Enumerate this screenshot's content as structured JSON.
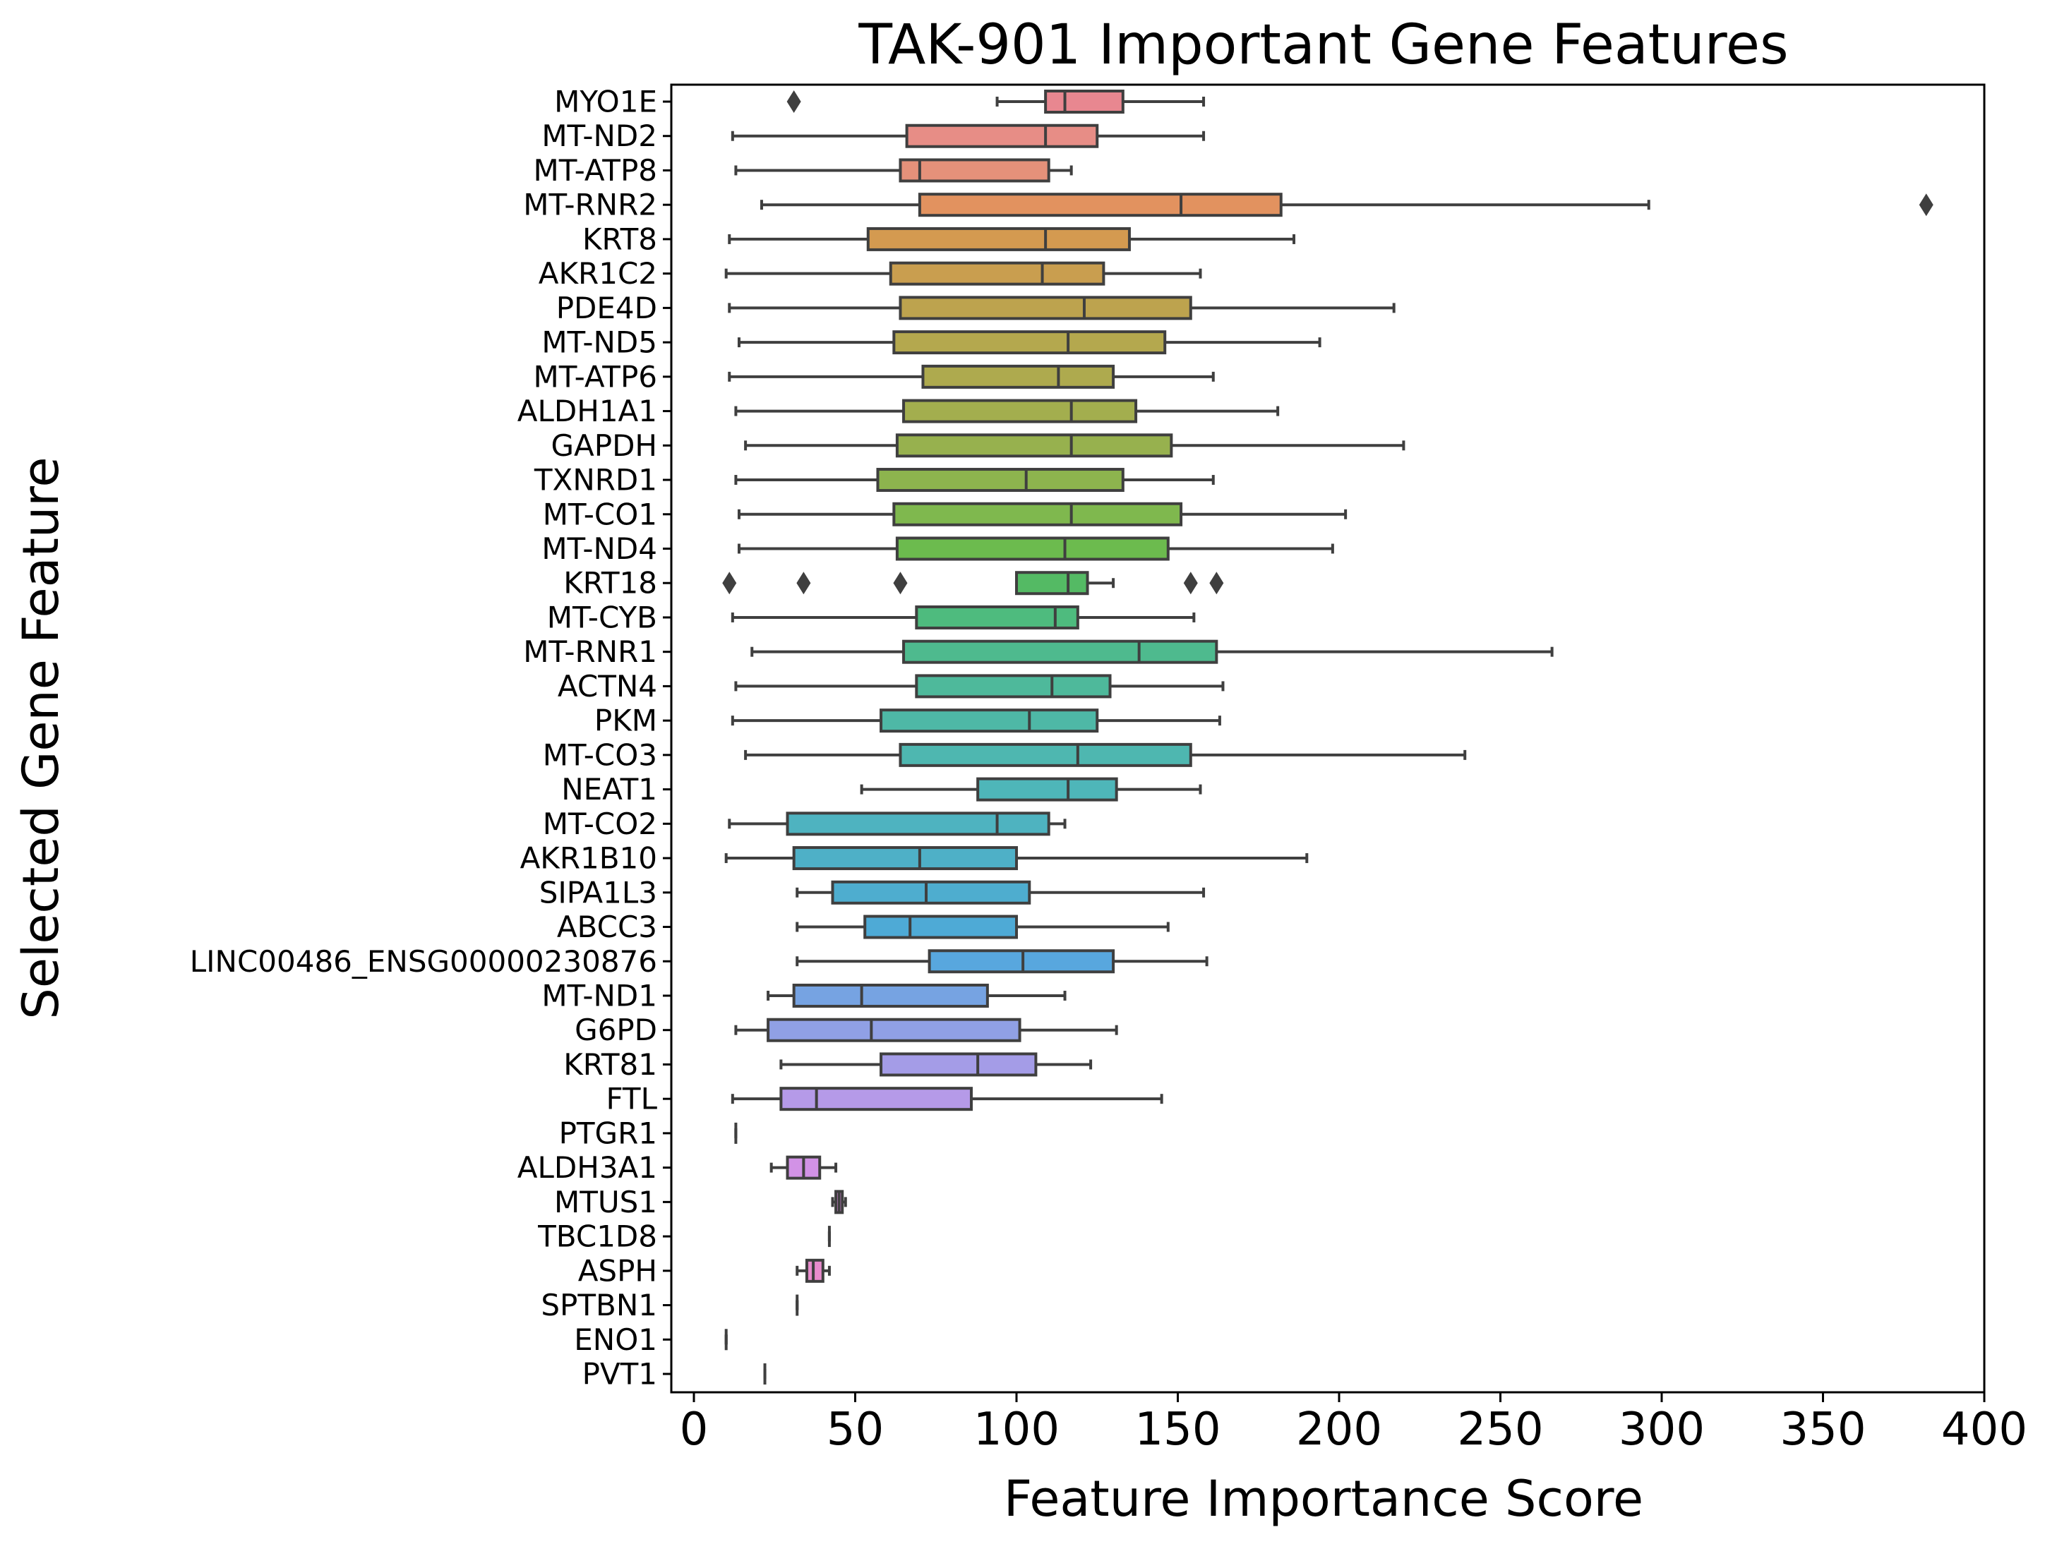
{
  "chart_data": {
    "type": "boxplot",
    "orientation": "horizontal",
    "title": "TAK-901 Important Gene Features",
    "xlabel": "Feature Importance Score",
    "ylabel": "Selected Gene Feature",
    "xlim": [
      -7,
      400
    ],
    "xticks": [
      0,
      50,
      100,
      150,
      200,
      250,
      300,
      350,
      400
    ],
    "grid": false,
    "legend": "none",
    "categories": [
      "MYO1E",
      "MT-ND2",
      "MT-ATP8",
      "MT-RNR2",
      "KRT8",
      "AKR1C2",
      "PDE4D",
      "MT-ND5",
      "MT-ATP6",
      "ALDH1A1",
      "GAPDH",
      "TXNRD1",
      "MT-CO1",
      "MT-ND4",
      "KRT18",
      "MT-CYB",
      "MT-RNR1",
      "ACTN4",
      "PKM",
      "MT-CO3",
      "NEAT1",
      "MT-CO2",
      "AKR1B10",
      "SIPA1L3",
      "ABCC3",
      "LINC00486_ENSG00000230876",
      "MT-ND1",
      "G6PD",
      "KRT81",
      "FTL",
      "PTGR1",
      "ALDH3A1",
      "MTUS1",
      "TBC1D8",
      "ASPH",
      "SPTBN1",
      "ENO1",
      "PVT1"
    ],
    "colors": [
      "#e88790",
      "#e78d86",
      "#e5917a",
      "#e2925f",
      "#d49a50",
      "#c99e4f",
      "#bda34e",
      "#b4a84e",
      "#aeaa4e",
      "#a3ae4e",
      "#97b14e",
      "#8db44e",
      "#7fb84e",
      "#6cbb4e",
      "#54ba64",
      "#4ebb7e",
      "#4eba8e",
      "#4eb99b",
      "#4eb8a6",
      "#4eb7b0",
      "#4eb6b9",
      "#4eb3c0",
      "#4eb0c7",
      "#4eadcf",
      "#4eaad6",
      "#58a7de",
      "#76a3e2",
      "#90a0e5",
      "#a49ce7",
      "#b59ae8",
      "#c297e8",
      "#d292e6",
      "#de8ce2",
      "#e78cd8",
      "#e88bcc",
      "#e88cc0",
      "#e88db4",
      "#e88ea8"
    ],
    "boxes": [
      {
        "whislo": 94,
        "q1": 109,
        "med": 115,
        "q3": 133,
        "whishi": 158,
        "fliers": [
          31
        ]
      },
      {
        "whislo": 12,
        "q1": 66,
        "med": 109,
        "q3": 125,
        "whishi": 158,
        "fliers": []
      },
      {
        "whislo": 13,
        "q1": 64,
        "med": 70,
        "q3": 110,
        "whishi": 117,
        "fliers": []
      },
      {
        "whislo": 21,
        "q1": 70,
        "med": 151,
        "q3": 182,
        "whishi": 296,
        "fliers": [
          382
        ]
      },
      {
        "whislo": 11,
        "q1": 54,
        "med": 109,
        "q3": 135,
        "whishi": 186,
        "fliers": []
      },
      {
        "whislo": 10,
        "q1": 61,
        "med": 108,
        "q3": 127,
        "whishi": 157,
        "fliers": []
      },
      {
        "whislo": 11,
        "q1": 64,
        "med": 121,
        "q3": 154,
        "whishi": 217,
        "fliers": []
      },
      {
        "whislo": 14,
        "q1": 62,
        "med": 116,
        "q3": 146,
        "whishi": 194,
        "fliers": []
      },
      {
        "whislo": 11,
        "q1": 71,
        "med": 113,
        "q3": 130,
        "whishi": 161,
        "fliers": []
      },
      {
        "whislo": 13,
        "q1": 65,
        "med": 117,
        "q3": 137,
        "whishi": 181,
        "fliers": []
      },
      {
        "whislo": 16,
        "q1": 63,
        "med": 117,
        "q3": 148,
        "whishi": 220,
        "fliers": []
      },
      {
        "whislo": 13,
        "q1": 57,
        "med": 103,
        "q3": 133,
        "whishi": 161,
        "fliers": []
      },
      {
        "whislo": 14,
        "q1": 62,
        "med": 117,
        "q3": 151,
        "whishi": 202,
        "fliers": []
      },
      {
        "whislo": 14,
        "q1": 63,
        "med": 115,
        "q3": 147,
        "whishi": 198,
        "fliers": []
      },
      {
        "whislo": 100,
        "q1": 100,
        "med": 116,
        "q3": 122,
        "whishi": 130,
        "fliers": [
          11,
          34,
          64,
          154,
          162
        ]
      },
      {
        "whislo": 12,
        "q1": 69,
        "med": 112,
        "q3": 119,
        "whishi": 155,
        "fliers": []
      },
      {
        "whislo": 18,
        "q1": 65,
        "med": 138,
        "q3": 162,
        "whishi": 266,
        "fliers": []
      },
      {
        "whislo": 13,
        "q1": 69,
        "med": 111,
        "q3": 129,
        "whishi": 164,
        "fliers": []
      },
      {
        "whislo": 12,
        "q1": 58,
        "med": 104,
        "q3": 125,
        "whishi": 163,
        "fliers": []
      },
      {
        "whislo": 16,
        "q1": 64,
        "med": 119,
        "q3": 154,
        "whishi": 239,
        "fliers": []
      },
      {
        "whislo": 52,
        "q1": 88,
        "med": 116,
        "q3": 131,
        "whishi": 157,
        "fliers": []
      },
      {
        "whislo": 11,
        "q1": 29,
        "med": 94,
        "q3": 110,
        "whishi": 115,
        "fliers": []
      },
      {
        "whislo": 10,
        "q1": 31,
        "med": 70,
        "q3": 100,
        "whishi": 190,
        "fliers": []
      },
      {
        "whislo": 32,
        "q1": 43,
        "med": 72,
        "q3": 104,
        "whishi": 158,
        "fliers": []
      },
      {
        "whislo": 32,
        "q1": 53,
        "med": 67,
        "q3": 100,
        "whishi": 147,
        "fliers": []
      },
      {
        "whislo": 32,
        "q1": 73,
        "med": 102,
        "q3": 130,
        "whishi": 159,
        "fliers": []
      },
      {
        "whislo": 23,
        "q1": 31,
        "med": 52,
        "q3": 91,
        "whishi": 115,
        "fliers": []
      },
      {
        "whislo": 13,
        "q1": 23,
        "med": 55,
        "q3": 101,
        "whishi": 131,
        "fliers": []
      },
      {
        "whislo": 27,
        "q1": 58,
        "med": 88,
        "q3": 106,
        "whishi": 123,
        "fliers": []
      },
      {
        "whislo": 12,
        "q1": 27,
        "med": 38,
        "q3": 86,
        "whishi": 145,
        "fliers": []
      },
      {
        "whislo": 13,
        "q1": 13,
        "med": 13,
        "q3": 13,
        "whishi": 13,
        "fliers": []
      },
      {
        "whislo": 24,
        "q1": 29,
        "med": 34,
        "q3": 39,
        "whishi": 44,
        "fliers": []
      },
      {
        "whislo": 43,
        "q1": 44,
        "med": 45,
        "q3": 46,
        "whishi": 47,
        "fliers": []
      },
      {
        "whislo": 42,
        "q1": 42,
        "med": 42,
        "q3": 42,
        "whishi": 42,
        "fliers": []
      },
      {
        "whislo": 32,
        "q1": 35,
        "med": 37,
        "q3": 40,
        "whishi": 42,
        "fliers": []
      },
      {
        "whislo": 32,
        "q1": 32,
        "med": 32,
        "q3": 32,
        "whishi": 32,
        "fliers": []
      },
      {
        "whislo": 10,
        "q1": 10,
        "med": 10,
        "q3": 10,
        "whishi": 10,
        "fliers": []
      },
      {
        "whislo": 22,
        "q1": 22,
        "med": 22,
        "q3": 22,
        "whishi": 22,
        "fliers": []
      }
    ]
  }
}
